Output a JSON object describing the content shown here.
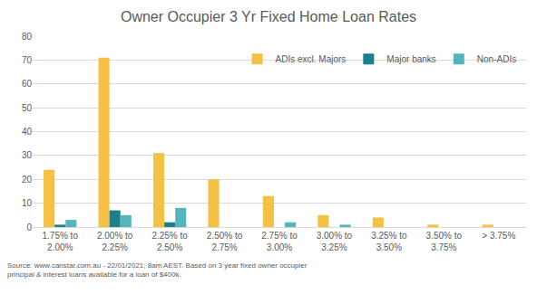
{
  "chart_data": {
    "type": "bar",
    "title": "Owner Occupier 3 Yr Fixed Home Loan Rates",
    "categories": [
      "1.75% to 2.00%",
      "2.00% to 2.25%",
      "2.25% to 2.50%",
      "2.50% to 2.75%",
      "2.75% to 3.00%",
      "3.00% to 3.25%",
      "3.25% to 3.50%",
      "3.50% to 3.75%",
      "> 3.75%"
    ],
    "series": [
      {
        "name": "ADIs excl. Majors",
        "color": "#F4C142",
        "values": [
          24,
          71,
          31,
          20,
          13,
          5,
          4,
          1,
          1
        ]
      },
      {
        "name": "Major banks",
        "color": "#1B7F8E",
        "values": [
          1,
          7,
          2,
          0,
          0,
          0,
          0,
          0,
          0
        ]
      },
      {
        "name": "Non-ADIs",
        "color": "#55B5BF",
        "values": [
          3,
          5,
          8,
          0,
          2,
          1,
          0,
          0,
          0
        ]
      }
    ],
    "ylim": [
      0,
      80
    ],
    "yticks": [
      0,
      10,
      20,
      30,
      40,
      50,
      60,
      70,
      80
    ],
    "grid": true,
    "legend": "top-right",
    "annotations": [
      "Source: www.canstar.com.au - 22/01/2021; 8am AEST. Based on 3 year fixed owner occupier principal & interest loans available for a loan of $400k."
    ]
  }
}
